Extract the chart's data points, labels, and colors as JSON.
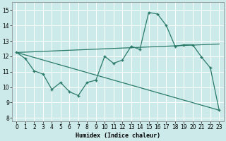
{
  "xlabel": "Humidex (Indice chaleur)",
  "xlim": [
    -0.5,
    23.5
  ],
  "ylim": [
    7.8,
    15.5
  ],
  "yticks": [
    8,
    9,
    10,
    11,
    12,
    13,
    14,
    15
  ],
  "xticks": [
    0,
    1,
    2,
    3,
    4,
    5,
    6,
    7,
    8,
    9,
    10,
    11,
    12,
    13,
    14,
    15,
    16,
    17,
    18,
    19,
    20,
    21,
    22,
    23
  ],
  "background_color": "#cdeaea",
  "grid_color": "#ffffff",
  "line_color": "#2a7a6a",
  "line1_x": [
    0,
    1,
    2,
    3,
    4,
    5,
    6,
    7,
    8,
    9,
    10,
    11,
    12,
    13,
    14,
    15,
    16,
    17,
    18,
    19,
    20,
    21,
    22,
    23
  ],
  "line1_y": [
    12.25,
    11.85,
    11.05,
    10.85,
    9.85,
    10.3,
    9.7,
    9.45,
    10.3,
    10.45,
    12.0,
    11.55,
    11.75,
    12.65,
    12.45,
    14.85,
    14.75,
    14.0,
    12.65,
    12.75,
    12.75,
    11.95,
    11.25,
    8.5
  ],
  "line2_x": [
    0,
    23
  ],
  "line2_y": [
    12.25,
    12.8
  ],
  "line3_x": [
    0,
    23
  ],
  "line3_y": [
    12.25,
    8.5
  ]
}
